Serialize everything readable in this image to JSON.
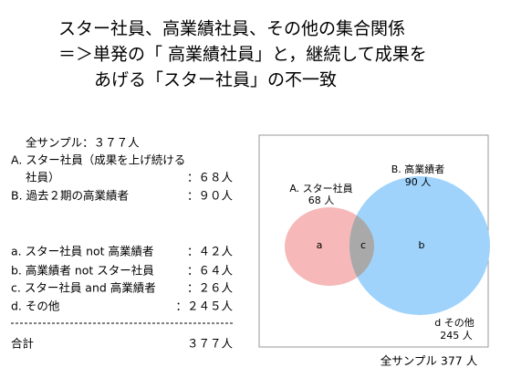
{
  "title": {
    "lines": [
      "スター社員、高業績社員、その他の集合関係",
      "＝＞単発の「 高業績社員」と，継続して成果を",
      "あげる「スター社員」の不一致"
    ]
  },
  "summary": {
    "sample": "全サンプル：３７７人",
    "groups": [
      {
        "label": [
          "A. スター社員（成果を上げ続ける",
          "社員）"
        ],
        "count": "：６８人"
      },
      {
        "label": [
          "B. 過去２期の高業績者"
        ],
        "count": "：９０人"
      }
    ],
    "segments": [
      {
        "label": "a. スター社員 not 高業績者",
        "count": "：４２人"
      },
      {
        "label": "b. 高業績者 not スター社員",
        "count": "：６４人"
      },
      {
        "label": "c. スター社員 and 高業績者",
        "count": "：２６人"
      },
      {
        "label": "d. その他",
        "count": "：２４５人"
      }
    ],
    "total": {
      "label": "合計",
      "count": "３７７人"
    }
  },
  "diagram": {
    "set_a": {
      "name": "A. スター社員",
      "count": "68 人"
    },
    "set_b": {
      "name": "B. 高業績者",
      "count": "90 人"
    },
    "regions": [
      "a",
      "c",
      "b"
    ],
    "other": {
      "name": "d その他",
      "count": "245 人"
    },
    "caption": "全サンプル 377 人"
  }
}
